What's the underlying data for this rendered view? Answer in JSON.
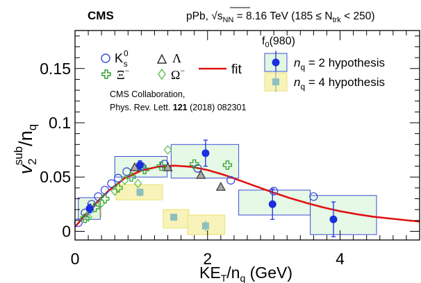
{
  "header": {
    "collaboration": "CMS",
    "system": "pPb, √s",
    "system_sub": "NN",
    "energy": " = 8.16 TeV (185 ≤ N",
    "ntrk_sub": "trk",
    "ntrk_tail": " < 250)"
  },
  "legend": {
    "k0s": "K",
    "k0s_sup": "0",
    "k0s_sub": "s",
    "lambda": "Λ",
    "xi": "Ξ",
    "xi_sup": "−",
    "omega": "Ω",
    "omega_sup": "−",
    "fit": "fit",
    "f0_title": "f",
    "f0_title_sub": "0",
    "f0_title_tail": "(980)",
    "nq2": "n",
    "nq2_sub": "q",
    "nq2_tail": " = 2 hypothesis",
    "nq4": "n",
    "nq4_sub": "q",
    "nq4_tail": " = 4 hypothesis"
  },
  "reference": {
    "line1": "CMS Collaboration,",
    "line2a": "Phys. Rev. Lett. ",
    "line2b": "121",
    "line2c": " (2018) 082301"
  },
  "colors": {
    "k0s": "#3b4fd8",
    "lambda": "#333333",
    "xi": "#2f9e2f",
    "omega": "#5fbf4f",
    "fit": "#e01010",
    "nq2_marker": "#1a2fe0",
    "nq2_box_fill": "#e2f7e2",
    "nq2_box_stroke": "#3b4fd8",
    "nq4_marker": "#8fbfbf",
    "nq4_box_fill": "#f8f3b8",
    "nq4_box_stroke": "#e8e070",
    "lambda_fill": "#aaaaaa"
  },
  "chart_data": {
    "type": "scatter",
    "xlabel": "KE",
    "xlabel_sub": "T",
    "xlabel_tail": "/n",
    "xlabel_tail_sub": "q",
    "xlabel_unit": " (GeV)",
    "ylabel": "v",
    "ylabel_sub": "2",
    "ylabel_sup": "sub",
    "ylabel_tail": "/n",
    "ylabel_tail_sub": "q",
    "xlim": [
      0,
      5.2
    ],
    "ylim": [
      -0.008,
      0.185
    ],
    "xticks": [
      0,
      2,
      4
    ],
    "xtick_labels": [
      "0",
      "2",
      "4"
    ],
    "yticks": [
      0,
      0.05,
      0.1,
      0.15
    ],
    "ytick_labels": [
      "0",
      "0.05",
      "0.1",
      "0.15"
    ],
    "fit": {
      "x": [
        0,
        0.25,
        0.5,
        0.75,
        1.0,
        1.25,
        1.5,
        1.75,
        2.0,
        2.25,
        2.5,
        2.75,
        3.0,
        3.25,
        3.5,
        3.75,
        4.0,
        4.25,
        4.5,
        4.75,
        5.0,
        5.2
      ],
      "y": [
        0.004,
        0.022,
        0.037,
        0.049,
        0.056,
        0.0595,
        0.0605,
        0.0595,
        0.0565,
        0.052,
        0.0465,
        0.041,
        0.0355,
        0.0305,
        0.026,
        0.022,
        0.0185,
        0.0158,
        0.0135,
        0.0118,
        0.0102,
        0.009
      ]
    },
    "series": [
      {
        "name": "K0s",
        "x": [
          0.05,
          0.15,
          0.25,
          0.35,
          0.45,
          0.55,
          0.65,
          0.78,
          1.0,
          1.35,
          1.85,
          2.35,
          3.0,
          3.6
        ],
        "y": [
          0.008,
          0.017,
          0.025,
          0.032,
          0.038,
          0.044,
          0.049,
          0.055,
          0.06,
          0.062,
          0.058,
          0.047,
          0.037,
          0.032
        ]
      },
      {
        "name": "Λ",
        "x": [
          0.9,
          1.4,
          1.9,
          2.2
        ],
        "y": [
          0.059,
          0.059,
          0.052,
          0.041
        ]
      },
      {
        "name": "Ξ−",
        "x": [
          0.15,
          0.3,
          0.45,
          0.65,
          0.85,
          1.05,
          1.3,
          1.8,
          2.3
        ],
        "y": [
          0.012,
          0.022,
          0.03,
          0.04,
          0.05,
          0.057,
          0.06,
          0.062,
          0.061
        ]
      },
      {
        "name": "Ω−",
        "x": [
          0.2,
          0.4,
          0.6,
          0.75,
          0.95,
          1.4
        ],
        "y": [
          0.013,
          0.026,
          0.037,
          0.047,
          0.044,
          0.075
        ]
      }
    ],
    "f0_nq2": [
      {
        "x": 0.22,
        "y": 0.021,
        "err": 0.004,
        "box_x": [
          0.05,
          0.38
        ],
        "box_y": [
          0.011,
          0.031
        ]
      },
      {
        "x": 0.98,
        "y": 0.061,
        "err": 0.004,
        "box_x": [
          0.6,
          1.39
        ],
        "box_y": [
          0.05,
          0.069
        ]
      },
      {
        "x": 1.97,
        "y": 0.072,
        "err": 0.012,
        "box_x": [
          1.45,
          2.47
        ],
        "box_y": [
          0.049,
          0.08
        ]
      },
      {
        "x": 2.98,
        "y": 0.025,
        "err": 0.014,
        "box_x": [
          2.47,
          3.55
        ],
        "box_y": [
          0.015,
          0.038
        ]
      },
      {
        "x": 3.9,
        "y": 0.011,
        "err": 0.016,
        "box_x": [
          3.55,
          4.55
        ],
        "box_y": [
          -0.003,
          0.033
        ]
      }
    ],
    "f0_nq4": [
      {
        "x": 0.22,
        "y": 0.02,
        "err": 0.003,
        "box_x": [
          0.05,
          0.4
        ],
        "box_y": [
          0.013,
          0.028
        ]
      },
      {
        "x": 0.98,
        "y": 0.036,
        "err": 0.004,
        "box_x": [
          0.62,
          1.32
        ],
        "box_y": [
          0.029,
          0.043
        ]
      },
      {
        "x": 1.49,
        "y": 0.013,
        "err": 0.003,
        "box_x": [
          1.33,
          1.72
        ],
        "box_y": [
          0.003,
          0.02
        ]
      },
      {
        "x": 1.97,
        "y": 0.005,
        "err": 0.005,
        "box_x": [
          1.7,
          2.26
        ],
        "box_y": [
          -0.003,
          0.015
        ]
      }
    ],
    "legend_placement": "top-right",
    "grid": false
  }
}
